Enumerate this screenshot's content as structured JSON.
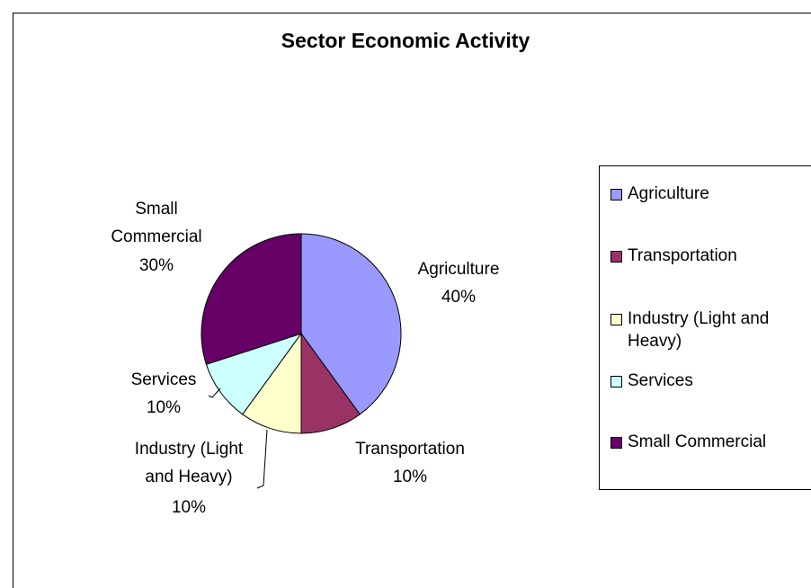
{
  "chart_data": {
    "type": "pie",
    "title": "Sector Economic Activity",
    "slices": [
      {
        "name": "Agriculture",
        "value": 40,
        "label_name": "Agriculture",
        "label_pct": "40%",
        "color": "#9999ff"
      },
      {
        "name": "Transportation",
        "value": 10,
        "label_name": "Transportation",
        "label_pct": "10%",
        "color": "#993366"
      },
      {
        "name": "Industry (Light and Heavy)",
        "value": 10,
        "label_name": "Industry (Light and Heavy)",
        "label_pct": "10%",
        "color": "#ffffcc"
      },
      {
        "name": "Services",
        "value": 10,
        "label_name": "Services",
        "label_pct": "10%",
        "color": "#ccffff"
      },
      {
        "name": "Small Commercial",
        "value": 30,
        "label_name": "Small Commercial",
        "label_pct": "30%",
        "color": "#660066"
      }
    ],
    "legend": {
      "position": "right",
      "entries": [
        "Agriculture",
        "Transportation",
        "Industry (Light and Heavy)",
        "Services",
        "Small Commercial"
      ]
    }
  }
}
